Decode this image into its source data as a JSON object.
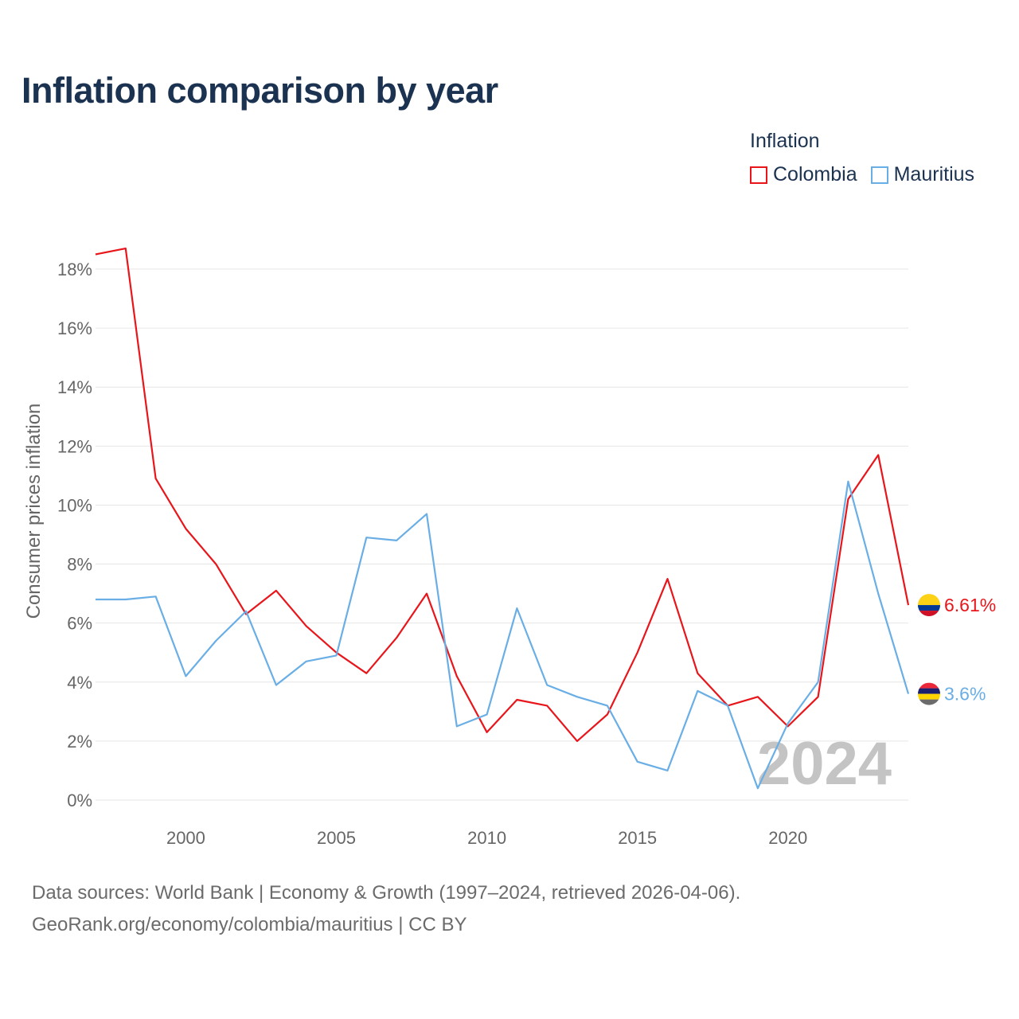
{
  "title": "Inflation comparison by year",
  "legend": {
    "title": "Inflation",
    "items": [
      {
        "label": "Colombia",
        "color": "#e8161b"
      },
      {
        "label": "Mauritius",
        "color": "#6aaee6"
      }
    ]
  },
  "chart_data": {
    "type": "line",
    "title": "Inflation comparison by year",
    "xlabel": "",
    "ylabel": "Consumer prices inflation",
    "x": [
      1997,
      1998,
      1999,
      2000,
      2001,
      2002,
      2003,
      2004,
      2005,
      2006,
      2007,
      2008,
      2009,
      2010,
      2011,
      2012,
      2013,
      2014,
      2015,
      2016,
      2017,
      2018,
      2019,
      2020,
      2021,
      2022,
      2023,
      2024
    ],
    "xlim": [
      1997,
      2024
    ],
    "ylim": [
      0,
      18
    ],
    "xticks": [
      2000,
      2005,
      2010,
      2015,
      2020
    ],
    "xtick_labels": [
      "2000",
      "2005",
      "2010",
      "2015",
      "2020"
    ],
    "yticks": [
      0,
      2,
      4,
      6,
      8,
      10,
      12,
      14,
      16,
      18
    ],
    "ytick_labels": [
      "0%",
      "2%",
      "4%",
      "6%",
      "8%",
      "10%",
      "12%",
      "14%",
      "16%",
      "18%"
    ],
    "grid": true,
    "legend_position": "top-right",
    "watermark_year": "2024",
    "series": [
      {
        "name": "Colombia",
        "color": "#e8161b",
        "values": [
          18.5,
          18.7,
          10.9,
          9.2,
          8.0,
          6.3,
          7.1,
          5.9,
          5.0,
          4.3,
          5.5,
          7.0,
          4.2,
          2.3,
          3.4,
          3.2,
          2.0,
          2.9,
          5.0,
          7.5,
          4.3,
          3.2,
          3.5,
          2.5,
          3.5,
          10.2,
          11.7,
          6.61
        ],
        "end_label": "6.61%"
      },
      {
        "name": "Mauritius",
        "color": "#6aaee6",
        "values": [
          6.8,
          6.8,
          6.9,
          4.2,
          5.4,
          6.4,
          3.9,
          4.7,
          4.9,
          8.9,
          8.8,
          9.7,
          2.5,
          2.9,
          6.5,
          3.9,
          3.5,
          3.2,
          1.3,
          1.0,
          3.7,
          3.2,
          0.4,
          2.6,
          4.0,
          10.8,
          7.0,
          3.6
        ],
        "end_label": "3.6%"
      }
    ]
  },
  "footer": {
    "line1": "Data sources: World Bank | Economy & Growth (1997–2024, retrieved 2026-04-06).",
    "line2": "GeoRank.org/economy/colombia/mauritius | CC BY"
  }
}
